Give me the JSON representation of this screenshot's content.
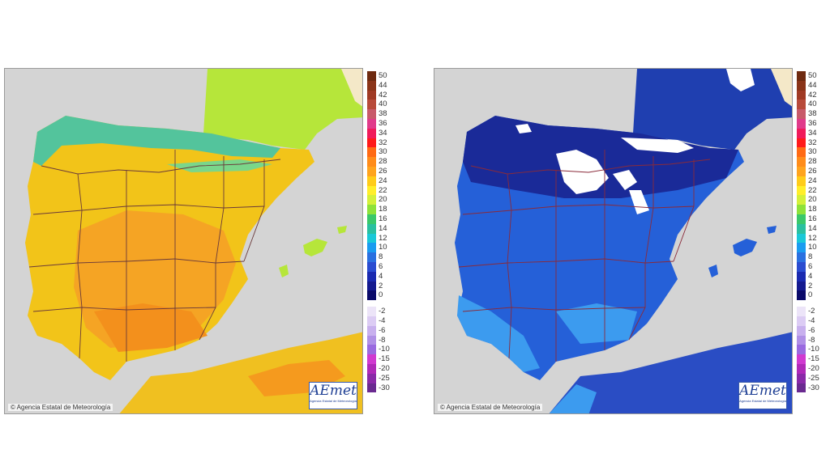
{
  "maps": [
    {
      "id": "left",
      "copyright": "© Agencia Estatal de Meteorología",
      "logo": {
        "brand": "AEmet",
        "sub": "Agencia Estatal de Meteorología"
      },
      "palette": {
        "sea": "#d4d4d4",
        "france": "#b6e63a",
        "spain_base": "#f2c419",
        "hot": "#f59a1e",
        "cool": "#53c49c",
        "africa": "#f0c020",
        "border": "#6b3a3a"
      }
    },
    {
      "id": "right",
      "copyright": "© Agencia Estatal de Meteorología",
      "logo": {
        "brand": "AEmet",
        "sub": "Agencia Estatal de Meteorología"
      },
      "palette": {
        "sea": "#d4d4d4",
        "france": "#1f3fb0",
        "spain_base": "#2560d8",
        "dark": "#1a2a98",
        "light": "#3c9bef",
        "snow": "#ffffff",
        "africa": "#2a4dc4",
        "border": "#8a2a3a"
      }
    }
  ],
  "legend": {
    "positive": [
      {
        "label": "50",
        "color": "#6e2a10"
      },
      {
        "label": "44",
        "color": "#8a3418"
      },
      {
        "label": "42",
        "color": "#a03a24"
      },
      {
        "label": "40",
        "color": "#b84a3a"
      },
      {
        "label": "38",
        "color": "#c85a6a"
      },
      {
        "label": "36",
        "color": "#e03a8a"
      },
      {
        "label": "34",
        "color": "#f01a5a"
      },
      {
        "label": "32",
        "color": "#ff1a1a"
      },
      {
        "label": "30",
        "color": "#ff6a14"
      },
      {
        "label": "28",
        "color": "#ff8c1a"
      },
      {
        "label": "26",
        "color": "#ffa41e"
      },
      {
        "label": "24",
        "color": "#ffcc1a"
      },
      {
        "label": "22",
        "color": "#ffee2a"
      },
      {
        "label": "20",
        "color": "#d4f03a"
      },
      {
        "label": "18",
        "color": "#8ee23a"
      },
      {
        "label": "16",
        "color": "#3ac86a"
      },
      {
        "label": "14",
        "color": "#2ac0a0"
      },
      {
        "label": "12",
        "color": "#1ac8d8"
      },
      {
        "label": "10",
        "color": "#1a9cf0"
      },
      {
        "label": "8",
        "color": "#2a70e0"
      },
      {
        "label": "6",
        "color": "#2a4cd0"
      },
      {
        "label": "4",
        "color": "#1a2ab0"
      },
      {
        "label": "2",
        "color": "#141a90"
      },
      {
        "label": "0",
        "color": "#0a0a6a"
      }
    ],
    "negative": [
      {
        "label": "-2",
        "color": "#ece4f8"
      },
      {
        "label": "-4",
        "color": "#dcccf4"
      },
      {
        "label": "-6",
        "color": "#c8b0ee"
      },
      {
        "label": "-8",
        "color": "#b090e6"
      },
      {
        "label": "-10",
        "color": "#9a6ae0"
      },
      {
        "label": "-15",
        "color": "#d03ad0"
      },
      {
        "label": "-20",
        "color": "#b02ab8"
      },
      {
        "label": "-25",
        "color": "#8a2aa8"
      },
      {
        "label": "-30",
        "color": "#6a2a90"
      }
    ]
  }
}
